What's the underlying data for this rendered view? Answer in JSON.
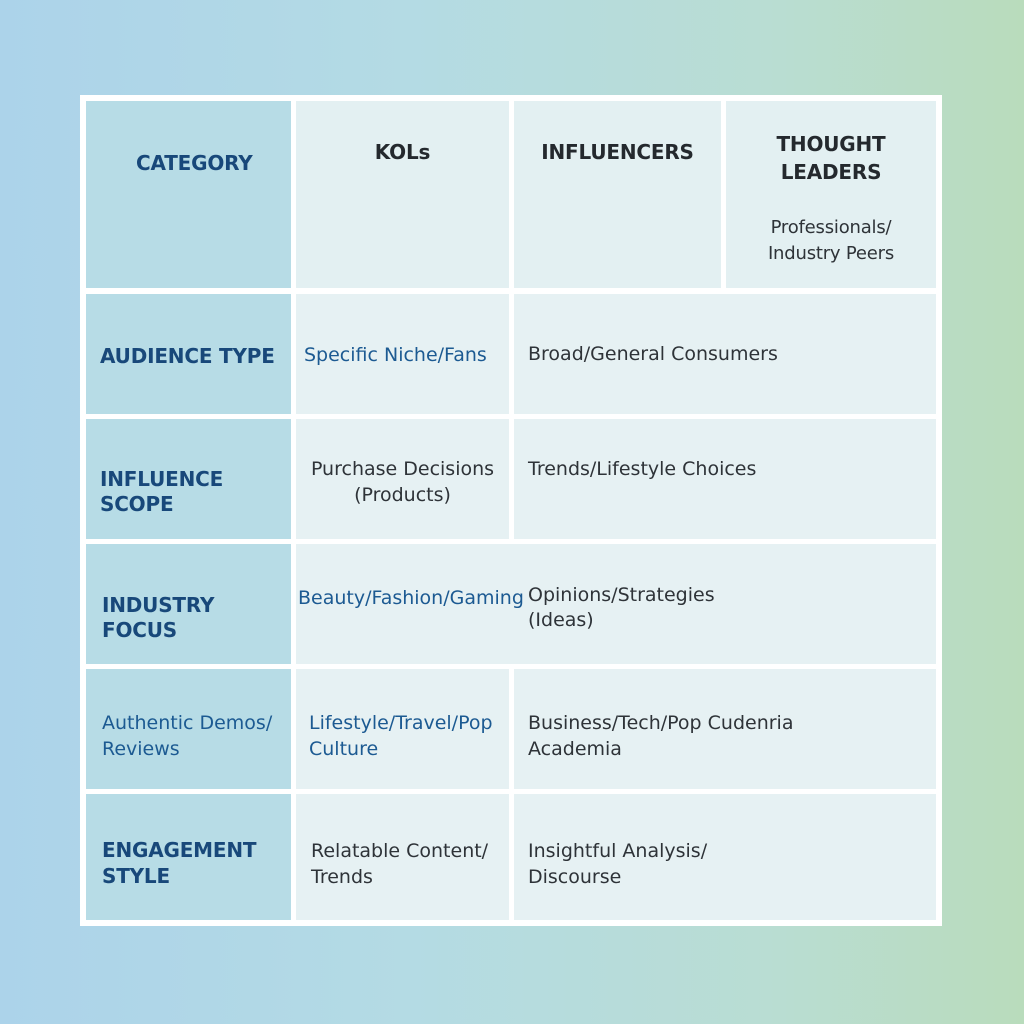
{
  "table": {
    "header": {
      "category": "CATEGORY",
      "kols": "KOLs",
      "influencers": "INFLUENCERS",
      "thought_leaders_line1": "THOUGHT",
      "thought_leaders_line2": "LEADERS",
      "thought_leaders_sub1": "Professionals/",
      "thought_leaders_sub2": "Industry Peers"
    },
    "rows": [
      {
        "label": "AUDIENCE TYPE",
        "kols": "Specific Niche/Fans",
        "rest": "Broad/General Consumers"
      },
      {
        "label": "INFLUENCE SCOPE",
        "kols_line1": "Purchase Decisions",
        "kols_line2": "(Products)",
        "rest": "Trends/Lifestyle Choices"
      },
      {
        "label": "INDUSTRY FOCUS",
        "kols": "Beauty/Fashion/Gaming",
        "rest_line1": "Opinions/Strategies",
        "rest_line2": "(Ideas)"
      },
      {
        "label_line1": "Authentic Demos/",
        "label_line2": "Reviews",
        "kols_line1": "Lifestyle/Travel/Pop",
        "kols_line2": "Culture",
        "rest_line1": "Business/Tech/Pop Cudenria",
        "rest_line2": "Academia"
      },
      {
        "label_line1": "ENGAGEMENT",
        "label_line2": "STYLE",
        "kols_line1": "Relatable Content/",
        "kols_line2": "Trends",
        "rest_line1": "Insightful Analysis/",
        "rest_line2": "Discourse"
      }
    ]
  },
  "colors": {
    "category_column": "#b7dce6",
    "cell": "#e6f1f3",
    "grid": "#ffffff",
    "blue_text": "#1c5a92",
    "dark_text": "#2e3338"
  }
}
